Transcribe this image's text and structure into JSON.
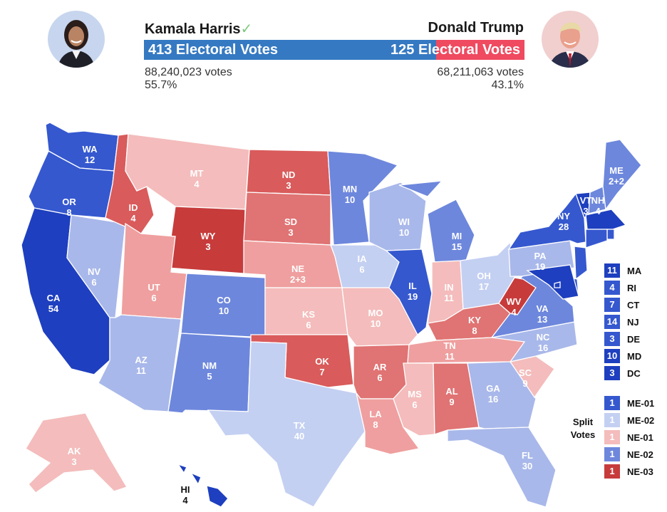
{
  "candidates": {
    "left": {
      "name": "Kamala Harris",
      "checkmark": "✓",
      "electoral": "413 Electoral Votes",
      "votes": "88,240,023 votes",
      "percent": "55.7%",
      "color": "#2f6fb8",
      "photo_tint": "#c9d8ee"
    },
    "right": {
      "name": "Donald Trump",
      "electoral": "125 Electoral Votes",
      "votes": "68,211,063 votes",
      "percent": "43.1%",
      "color": "#ef4a60",
      "photo_tint": "#f3c9c9"
    }
  },
  "ev_bar": {
    "left_value": 413,
    "right_value": 125,
    "left_color": "#3579c2",
    "right_color": "#ef4a60"
  },
  "palette": {
    "D4": "#1e3fbf",
    "D3": "#3558cf",
    "D2": "#6d87dc",
    "D1": "#a9b8ea",
    "D0": "#c4d0f2",
    "R0": "#f4bcbc",
    "R1": "#ef9f9f",
    "R2": "#e07373",
    "R3": "#d95b5b",
    "R4": "#c73b3b"
  },
  "states": [
    {
      "abbr": "WA",
      "ev": "12",
      "shade": "D3"
    },
    {
      "abbr": "OR",
      "ev": "8",
      "shade": "D3"
    },
    {
      "abbr": "CA",
      "ev": "54",
      "shade": "D4"
    },
    {
      "abbr": "NV",
      "ev": "6",
      "shade": "D1"
    },
    {
      "abbr": "ID",
      "ev": "4",
      "shade": "R3"
    },
    {
      "abbr": "MT",
      "ev": "4",
      "shade": "R0"
    },
    {
      "abbr": "WY",
      "ev": "3",
      "shade": "R4"
    },
    {
      "abbr": "UT",
      "ev": "6",
      "shade": "R1"
    },
    {
      "abbr": "AZ",
      "ev": "11",
      "shade": "D1"
    },
    {
      "abbr": "CO",
      "ev": "10",
      "shade": "D2"
    },
    {
      "abbr": "NM",
      "ev": "5",
      "shade": "D2"
    },
    {
      "abbr": "ND",
      "ev": "3",
      "shade": "R3"
    },
    {
      "abbr": "SD",
      "ev": "3",
      "shade": "R2"
    },
    {
      "abbr": "NE",
      "ev": "2+3",
      "shade": "R1"
    },
    {
      "abbr": "KS",
      "ev": "6",
      "shade": "R0"
    },
    {
      "abbr": "OK",
      "ev": "7",
      "shade": "R3"
    },
    {
      "abbr": "TX",
      "ev": "40",
      "shade": "D0"
    },
    {
      "abbr": "MN",
      "ev": "10",
      "shade": "D2"
    },
    {
      "abbr": "IA",
      "ev": "6",
      "shade": "D0"
    },
    {
      "abbr": "MO",
      "ev": "10",
      "shade": "R0"
    },
    {
      "abbr": "AR",
      "ev": "6",
      "shade": "R2"
    },
    {
      "abbr": "LA",
      "ev": "8",
      "shade": "R1"
    },
    {
      "abbr": "WI",
      "ev": "10",
      "shade": "D1"
    },
    {
      "abbr": "IL",
      "ev": "19",
      "shade": "D3"
    },
    {
      "abbr": "MI",
      "ev": "15",
      "shade": "D2"
    },
    {
      "abbr": "IN",
      "ev": "11",
      "shade": "R0"
    },
    {
      "abbr": "OH",
      "ev": "17",
      "shade": "D0"
    },
    {
      "abbr": "KY",
      "ev": "8",
      "shade": "R2"
    },
    {
      "abbr": "TN",
      "ev": "11",
      "shade": "R1"
    },
    {
      "abbr": "MS",
      "ev": "6",
      "shade": "R0"
    },
    {
      "abbr": "AL",
      "ev": "9",
      "shade": "R2"
    },
    {
      "abbr": "GA",
      "ev": "16",
      "shade": "D1"
    },
    {
      "abbr": "FL",
      "ev": "30",
      "shade": "D1"
    },
    {
      "abbr": "SC",
      "ev": "9",
      "shade": "R0"
    },
    {
      "abbr": "NC",
      "ev": "16",
      "shade": "D1"
    },
    {
      "abbr": "VA",
      "ev": "13",
      "shade": "D2"
    },
    {
      "abbr": "WV",
      "ev": "4",
      "shade": "R4"
    },
    {
      "abbr": "PA",
      "ev": "19",
      "shade": "D1"
    },
    {
      "abbr": "NY",
      "ev": "28",
      "shade": "D3"
    },
    {
      "abbr": "VT",
      "ev": "3",
      "shade": "D4"
    },
    {
      "abbr": "NH",
      "ev": "4",
      "shade": "D2"
    },
    {
      "abbr": "ME",
      "ev": "2+2",
      "shade": "D2"
    },
    {
      "abbr": "AK",
      "ev": "3",
      "shade": "R0"
    },
    {
      "abbr": "HI",
      "ev": "4",
      "shade": "D4"
    }
  ],
  "small_states": [
    {
      "ev": "11",
      "abbr": "MA",
      "shade": "D4"
    },
    {
      "ev": "4",
      "abbr": "RI",
      "shade": "D3"
    },
    {
      "ev": "7",
      "abbr": "CT",
      "shade": "D3"
    },
    {
      "ev": "14",
      "abbr": "NJ",
      "shade": "D3"
    },
    {
      "ev": "3",
      "abbr": "DE",
      "shade": "D3"
    },
    {
      "ev": "10",
      "abbr": "MD",
      "shade": "D4"
    },
    {
      "ev": "3",
      "abbr": "DC",
      "shade": "D4"
    }
  ],
  "split_votes": {
    "title_line1": "Split",
    "title_line2": "Votes",
    "items": [
      {
        "ev": "1",
        "label": "ME-01",
        "shade": "D3"
      },
      {
        "ev": "1",
        "label": "ME-02",
        "shade": "D0"
      },
      {
        "ev": "1",
        "label": "NE-01",
        "shade": "R0"
      },
      {
        "ev": "1",
        "label": "NE-02",
        "shade": "D2"
      },
      {
        "ev": "1",
        "label": "NE-03",
        "shade": "R4"
      }
    ]
  }
}
